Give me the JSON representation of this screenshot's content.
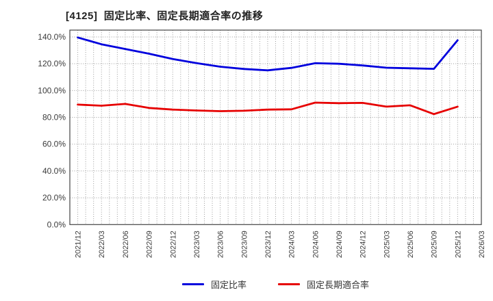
{
  "title": "[4125]  固定比率、固定長期適合率の推移",
  "colors": {
    "series1": "#0000dd",
    "series2": "#e60000",
    "grid": "#9a9a9a",
    "plot_border": "#444444",
    "tick_text": "#3a3a3a",
    "title_text": "#222222"
  },
  "chart_data": {
    "type": "line",
    "title": "[4125]  固定比率、固定長期適合率の推移",
    "categories": [
      "2021/12",
      "2022/03",
      "2022/06",
      "2022/09",
      "2022/12",
      "2023/03",
      "2023/06",
      "2023/09",
      "2023/12",
      "2024/03",
      "2024/06",
      "2024/09",
      "2024/12",
      "2025/03",
      "2025/06",
      "2025/09",
      "2025/12",
      "2026/03"
    ],
    "series": [
      {
        "name": "固定比率",
        "color": "#0000dd",
        "values": [
          139.6,
          134.5,
          131.0,
          127.5,
          123.5,
          120.5,
          117.8,
          116.1,
          115.1,
          116.9,
          120.4,
          120.0,
          118.7,
          117.0,
          116.6,
          116.2,
          137.5
        ]
      },
      {
        "name": "固定長期適合率",
        "color": "#e60000",
        "values": [
          89.5,
          88.7,
          90.0,
          87.0,
          85.8,
          85.1,
          84.6,
          84.9,
          85.8,
          86.0,
          91.0,
          90.6,
          90.8,
          88.0,
          89.0,
          82.4,
          88.0
        ]
      }
    ],
    "xlabel": "",
    "ylabel": "",
    "y_ticks": [
      "140.0%",
      "120.0%",
      "100.0%",
      "80.0%",
      "60.0%",
      "40.0%",
      "20.0%",
      "0.0%"
    ],
    "ylim": [
      0,
      140
    ],
    "grid": true,
    "grid_style": "dotted",
    "minor_x_grid": "monthly",
    "legend_position": "bottom"
  },
  "legend": {
    "items": [
      {
        "label": "固定比率",
        "color": "#0000dd"
      },
      {
        "label": "固定長期適合率",
        "color": "#e60000"
      }
    ]
  }
}
